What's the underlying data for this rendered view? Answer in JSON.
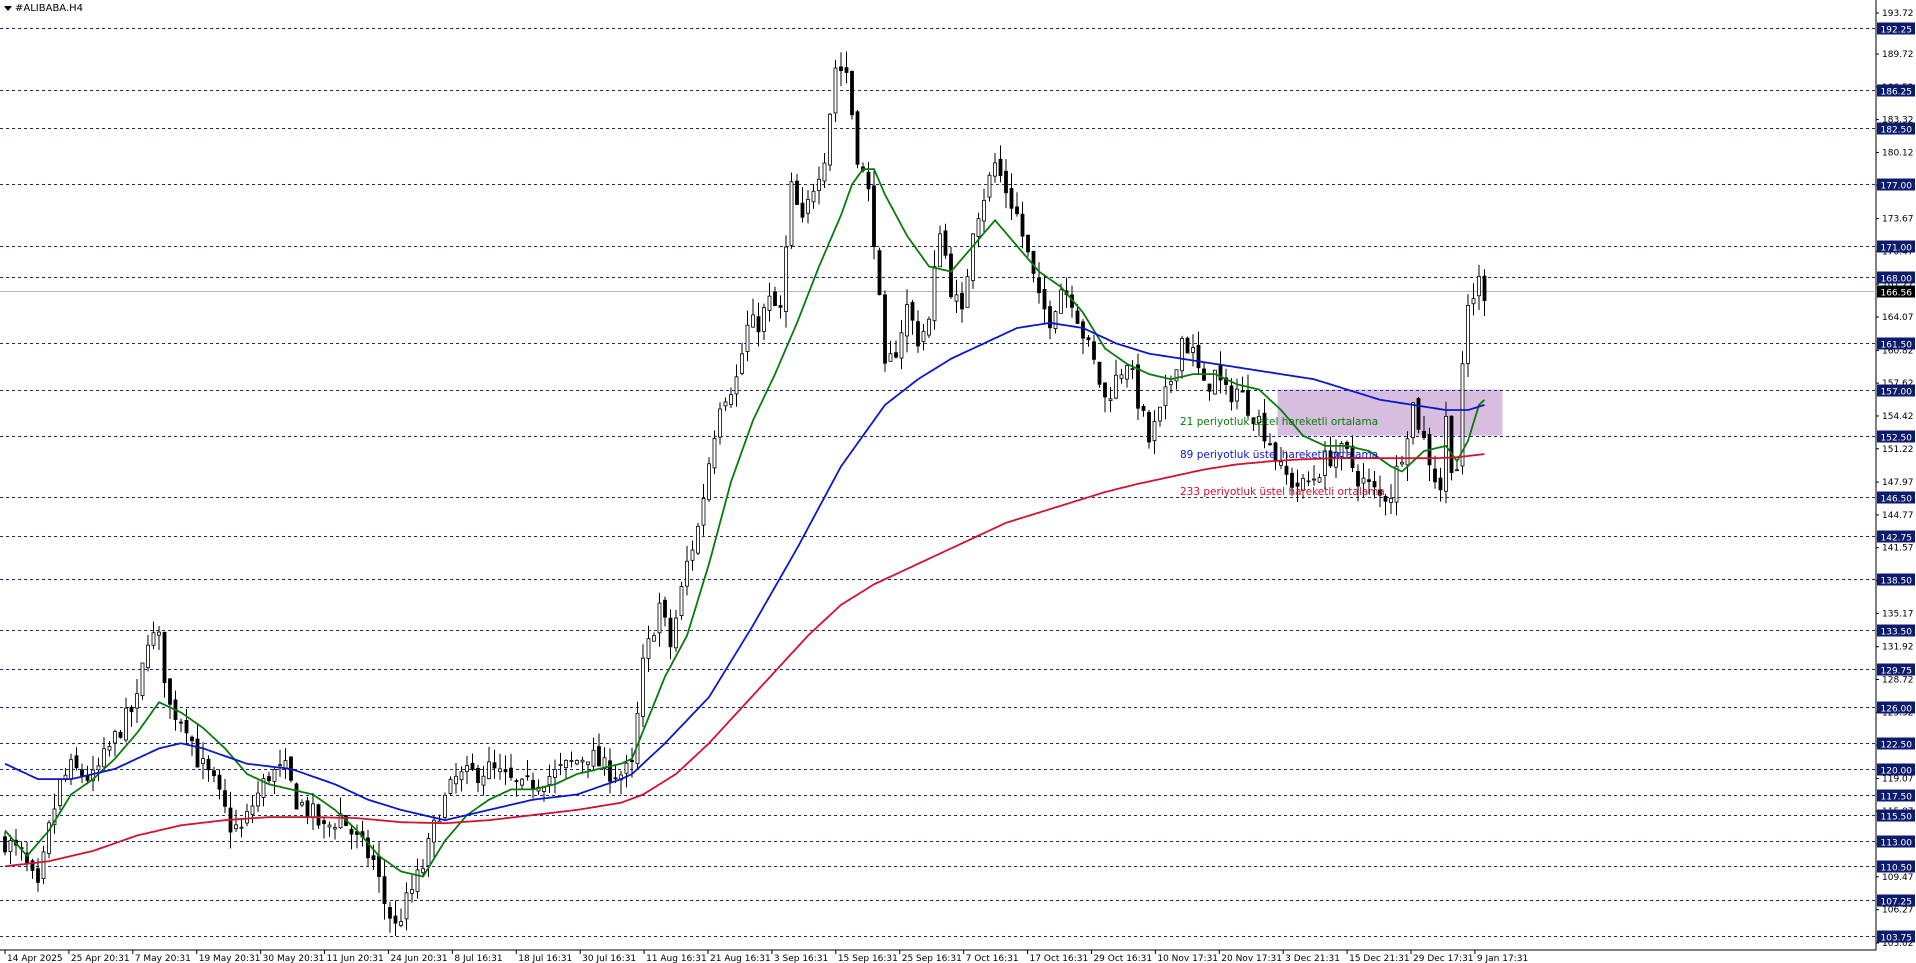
{
  "window": {
    "title": "#ALIBABA.H4"
  },
  "colors": {
    "background": "#ffffff",
    "candle": "#000000",
    "grid_line": "#1a237e",
    "price_label_bg": "#0d1b6e",
    "ema21": "#0a7a0a",
    "ema89": "#0b17c9",
    "ema233": "#d2122e",
    "zone_fill": "#c9a8d6",
    "current_price_line": "#b8b8b8"
  },
  "chart_data": {
    "type": "candlestick",
    "symbol": "#ALIBABA.H4",
    "ylim": [
      103.02,
      193.72
    ],
    "x_tick_labels": [
      "14 Apr 2025",
      "25 Apr 20:31",
      "7 May 20:31",
      "19 May 20:31",
      "30 May 20:31",
      "11 Jun 20:31",
      "24 Jun 20:31",
      "8 Jul 16:31",
      "18 Jul 16:31",
      "30 Jul 16:31",
      "11 Aug 16:31",
      "21 Aug 16:31",
      "3 Sep 16:31",
      "15 Sep 16:31",
      "25 Sep 16:31",
      "7 Oct 16:31",
      "17 Oct 16:31",
      "29 Oct 16:31",
      "10 Nov 17:31",
      "20 Nov 17:31",
      "3 Dec 21:31",
      "15 Dec 21:31",
      "29 Dec 17:31",
      "9 Jan 17:31"
    ],
    "y_tick_labels": [
      193.72,
      189.72,
      186.52,
      183.32,
      180.12,
      176.92,
      173.67,
      170.47,
      167.27,
      164.07,
      160.82,
      157.62,
      154.42,
      151.22,
      147.97,
      144.77,
      141.57,
      138.37,
      135.17,
      131.92,
      128.72,
      125.52,
      122.32,
      119.07,
      115.87,
      112.67,
      109.47,
      106.27,
      103.02
    ],
    "horizontal_levels": [
      192.25,
      186.25,
      182.5,
      177.0,
      171.0,
      168.0,
      161.5,
      157.0,
      152.5,
      146.5,
      142.75,
      138.5,
      133.5,
      129.75,
      126.0,
      122.5,
      120.0,
      117.5,
      115.5,
      113.0,
      110.5,
      107.25,
      103.75
    ],
    "current_price": 166.56,
    "zone": {
      "from": 152.5,
      "to": 157.0
    },
    "annotations": [
      "21 periyotluk üstel hareketli ortalama",
      "89 periyotluk üstel hareketli ortalama",
      "233 periyotluk üstel hareketli ortalama"
    ],
    "close_path": [
      [
        0,
        113.0
      ],
      [
        3,
        111.5
      ],
      [
        6,
        108.0
      ],
      [
        8,
        114.0
      ],
      [
        10,
        118.5
      ],
      [
        12,
        120.0
      ],
      [
        14,
        119.5
      ],
      [
        16,
        119.0
      ],
      [
        18,
        121.0
      ],
      [
        21,
        124.0
      ],
      [
        24,
        126.5
      ],
      [
        26,
        133.0
      ],
      [
        28,
        132.5
      ],
      [
        30,
        126.0
      ],
      [
        33,
        124.5
      ],
      [
        35,
        121.0
      ],
      [
        38,
        118.5
      ],
      [
        41,
        114.5
      ],
      [
        43,
        114.0
      ],
      [
        45,
        116.5
      ],
      [
        48,
        119.5
      ],
      [
        51,
        119.8
      ],
      [
        53,
        117.0
      ],
      [
        56,
        115.5
      ],
      [
        58,
        114.0
      ],
      [
        61,
        115.5
      ],
      [
        64,
        113.0
      ],
      [
        67,
        111.0
      ],
      [
        69,
        107.0
      ],
      [
        71,
        104.5
      ],
      [
        73,
        107.0
      ],
      [
        76,
        110.5
      ],
      [
        79,
        116.0
      ],
      [
        82,
        119.0
      ],
      [
        85,
        119.5
      ],
      [
        88,
        120.0
      ],
      [
        91,
        119.0
      ],
      [
        94,
        118.0
      ],
      [
        97,
        119.0
      ],
      [
        100,
        119.5
      ],
      [
        103,
        120.5
      ],
      [
        106,
        121.5
      ],
      [
        109,
        120.0
      ],
      [
        112,
        119.5
      ],
      [
        114,
        120.0
      ],
      [
        116,
        130.0
      ],
      [
        119,
        136.0
      ],
      [
        121,
        132.0
      ],
      [
        124,
        140.0
      ],
      [
        126,
        143.5
      ],
      [
        128,
        150.0
      ],
      [
        130,
        156.0
      ],
      [
        133,
        158.0
      ],
      [
        135,
        163.0
      ],
      [
        137,
        163.5
      ],
      [
        139,
        165.5
      ],
      [
        141,
        164.5
      ],
      [
        143,
        176.5
      ],
      [
        145,
        173.0
      ],
      [
        147,
        177.0
      ],
      [
        149,
        180.0
      ],
      [
        151,
        188.5
      ],
      [
        153,
        188.0
      ],
      [
        155,
        180.0
      ],
      [
        157,
        176.0
      ],
      [
        158,
        172.0
      ],
      [
        160,
        158.5
      ],
      [
        162,
        161.0
      ],
      [
        164,
        165.0
      ],
      [
        166,
        162.0
      ],
      [
        168,
        163.5
      ],
      [
        170,
        173.0
      ],
      [
        172,
        167.0
      ],
      [
        174,
        164.0
      ],
      [
        176,
        173.0
      ],
      [
        178,
        176.0
      ],
      [
        180,
        179.0
      ],
      [
        182,
        176.5
      ],
      [
        184,
        174.0
      ],
      [
        186,
        170.0
      ],
      [
        188,
        165.5
      ],
      [
        190,
        164.0
      ],
      [
        192,
        167.0
      ],
      [
        194,
        166.0
      ],
      [
        196,
        162.5
      ],
      [
        198,
        159.5
      ],
      [
        200,
        156.0
      ],
      [
        202,
        158.0
      ],
      [
        204,
        160.0
      ],
      [
        206,
        156.0
      ],
      [
        208,
        152.0
      ],
      [
        210,
        154.5
      ],
      [
        212,
        158.0
      ],
      [
        214,
        162.0
      ],
      [
        216,
        160.5
      ],
      [
        218,
        157.0
      ],
      [
        220,
        158.5
      ],
      [
        222,
        156.5
      ],
      [
        224,
        157.0
      ],
      [
        226,
        155.5
      ],
      [
        228,
        154.0
      ],
      [
        230,
        152.0
      ],
      [
        232,
        149.0
      ],
      [
        234,
        148.0
      ],
      [
        236,
        147.5
      ],
      [
        238,
        148.5
      ],
      [
        240,
        150.0
      ],
      [
        242,
        151.0
      ],
      [
        244,
        150.5
      ],
      [
        246,
        148.5
      ],
      [
        248,
        147.5
      ],
      [
        250,
        146.5
      ],
      [
        252,
        147.0
      ],
      [
        254,
        151.0
      ],
      [
        256,
        155.5
      ],
      [
        258,
        152.0
      ],
      [
        260,
        148.5
      ],
      [
        261,
        147.5
      ],
      [
        262,
        154.0
      ],
      [
        263,
        150.0
      ],
      [
        264,
        149.5
      ],
      [
        265,
        158.5
      ],
      [
        266,
        165.0
      ],
      [
        268,
        167.5
      ],
      [
        269,
        166.56
      ]
    ],
    "series": [
      {
        "name": "21 periyotluk üstel hareketli ortalama",
        "period": 21,
        "points": [
          [
            0,
            114.0
          ],
          [
            4,
            111.5
          ],
          [
            8,
            114.0
          ],
          [
            12,
            117.5
          ],
          [
            16,
            119.0
          ],
          [
            20,
            121.0
          ],
          [
            24,
            123.5
          ],
          [
            28,
            126.5
          ],
          [
            32,
            125.5
          ],
          [
            36,
            124.0
          ],
          [
            40,
            122.0
          ],
          [
            44,
            119.5
          ],
          [
            48,
            118.5
          ],
          [
            52,
            118.0
          ],
          [
            56,
            117.5
          ],
          [
            60,
            116.0
          ],
          [
            64,
            114.0
          ],
          [
            68,
            111.5
          ],
          [
            72,
            110.0
          ],
          [
            76,
            109.5
          ],
          [
            80,
            113.0
          ],
          [
            84,
            115.5
          ],
          [
            88,
            117.0
          ],
          [
            92,
            118.0
          ],
          [
            96,
            118.0
          ],
          [
            100,
            118.5
          ],
          [
            104,
            119.5
          ],
          [
            108,
            120.0
          ],
          [
            112,
            120.5
          ],
          [
            114,
            121.0
          ],
          [
            117,
            125.0
          ],
          [
            120,
            129.0
          ],
          [
            124,
            133.0
          ],
          [
            128,
            140.0
          ],
          [
            132,
            148.0
          ],
          [
            136,
            154.0
          ],
          [
            140,
            158.5
          ],
          [
            144,
            163.5
          ],
          [
            148,
            169.0
          ],
          [
            152,
            174.0
          ],
          [
            154,
            177.0
          ],
          [
            156,
            178.5
          ],
          [
            158,
            178.5
          ],
          [
            160,
            176.0
          ],
          [
            164,
            172.0
          ],
          [
            168,
            169.0
          ],
          [
            172,
            168.5
          ],
          [
            176,
            171.0
          ],
          [
            180,
            173.5
          ],
          [
            184,
            171.0
          ],
          [
            188,
            168.5
          ],
          [
            192,
            167.0
          ],
          [
            196,
            164.5
          ],
          [
            200,
            161.0
          ],
          [
            204,
            159.5
          ],
          [
            208,
            158.5
          ],
          [
            212,
            158.0
          ],
          [
            216,
            158.5
          ],
          [
            220,
            158.5
          ],
          [
            224,
            157.5
          ],
          [
            228,
            157.0
          ],
          [
            232,
            155.0
          ],
          [
            236,
            152.5
          ],
          [
            240,
            151.5
          ],
          [
            244,
            151.5
          ],
          [
            248,
            151.0
          ],
          [
            252,
            149.5
          ],
          [
            254,
            149.0
          ],
          [
            258,
            151.0
          ],
          [
            262,
            151.5
          ],
          [
            264,
            150.0
          ],
          [
            266,
            152.0
          ],
          [
            268,
            155.5
          ],
          [
            269,
            156.0
          ]
        ]
      },
      {
        "name": "89 periyotluk üstel hareketli ortalama",
        "period": 89,
        "points": [
          [
            0,
            120.5
          ],
          [
            6,
            119.0
          ],
          [
            12,
            119.0
          ],
          [
            20,
            120.0
          ],
          [
            28,
            122.0
          ],
          [
            32,
            122.5
          ],
          [
            36,
            122.0
          ],
          [
            44,
            120.5
          ],
          [
            52,
            120.0
          ],
          [
            60,
            118.5
          ],
          [
            66,
            117.0
          ],
          [
            72,
            116.0
          ],
          [
            80,
            115.0
          ],
          [
            88,
            116.0
          ],
          [
            96,
            117.0
          ],
          [
            104,
            117.5
          ],
          [
            112,
            119.0
          ],
          [
            114,
            119.5
          ],
          [
            120,
            122.5
          ],
          [
            128,
            127.0
          ],
          [
            136,
            134.0
          ],
          [
            144,
            141.5
          ],
          [
            152,
            149.5
          ],
          [
            160,
            155.5
          ],
          [
            166,
            158.0
          ],
          [
            172,
            160.0
          ],
          [
            178,
            161.5
          ],
          [
            184,
            163.0
          ],
          [
            190,
            163.5
          ],
          [
            196,
            163.0
          ],
          [
            202,
            161.5
          ],
          [
            208,
            160.5
          ],
          [
            214,
            160.0
          ],
          [
            220,
            159.5
          ],
          [
            226,
            159.0
          ],
          [
            232,
            158.5
          ],
          [
            238,
            158.0
          ],
          [
            244,
            157.0
          ],
          [
            250,
            156.0
          ],
          [
            256,
            155.5
          ],
          [
            262,
            155.0
          ],
          [
            266,
            155.0
          ],
          [
            269,
            155.5
          ]
        ]
      },
      {
        "name": "233 periyotluk üstel hareketli ortalama",
        "period": 233,
        "points": [
          [
            0,
            110.5
          ],
          [
            8,
            111.0
          ],
          [
            16,
            112.0
          ],
          [
            24,
            113.5
          ],
          [
            32,
            114.5
          ],
          [
            40,
            115.0
          ],
          [
            48,
            115.3
          ],
          [
            56,
            115.3
          ],
          [
            64,
            115.2
          ],
          [
            72,
            114.8
          ],
          [
            80,
            114.7
          ],
          [
            88,
            115.0
          ],
          [
            96,
            115.5
          ],
          [
            104,
            116.0
          ],
          [
            112,
            116.7
          ],
          [
            116,
            117.5
          ],
          [
            122,
            119.5
          ],
          [
            128,
            122.5
          ],
          [
            134,
            126.0
          ],
          [
            140,
            129.5
          ],
          [
            146,
            133.0
          ],
          [
            152,
            136.0
          ],
          [
            158,
            138.0
          ],
          [
            164,
            139.5
          ],
          [
            170,
            141.0
          ],
          [
            176,
            142.5
          ],
          [
            182,
            144.0
          ],
          [
            188,
            145.0
          ],
          [
            194,
            146.0
          ],
          [
            200,
            147.0
          ],
          [
            206,
            147.8
          ],
          [
            212,
            148.5
          ],
          [
            218,
            149.2
          ],
          [
            224,
            149.7
          ],
          [
            230,
            150.0
          ],
          [
            236,
            150.2
          ],
          [
            242,
            150.3
          ],
          [
            248,
            150.3
          ],
          [
            254,
            150.3
          ],
          [
            260,
            150.3
          ],
          [
            264,
            150.4
          ],
          [
            269,
            150.7
          ]
        ]
      }
    ]
  }
}
